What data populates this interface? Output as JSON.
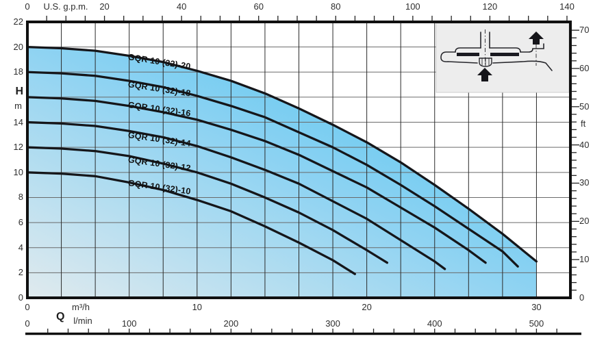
{
  "chart_data": {
    "type": "line",
    "axes": {
      "top_x": {
        "unit": "U.S. g.p.m.",
        "tick_labels": [
          0,
          20,
          40,
          60,
          80,
          100,
          120,
          140
        ],
        "minor_tick_step_gpm": 5,
        "range_gpm": [
          0,
          141
        ]
      },
      "bottom_x_m3h": {
        "label": "Q",
        "unit": "m³/h",
        "tick_labels": [
          0,
          10,
          20,
          30
        ],
        "range_m3h": [
          0,
          32
        ]
      },
      "bottom_x_lmin": {
        "unit": "l/min",
        "tick_labels": [
          0,
          100,
          200,
          300,
          400,
          500
        ],
        "minor_tick_step_lmin": 20,
        "range_lmin": [
          0,
          533
        ]
      },
      "left_y": {
        "label": "H",
        "unit": "m",
        "tick_labels": [
          22,
          20,
          18,
          14,
          12,
          10,
          8,
          6,
          4,
          2,
          0
        ],
        "gridline_step_m": 2,
        "range_m": [
          0,
          22
        ]
      },
      "right_y": {
        "unit": "ft",
        "tick_labels": [
          70,
          60,
          50,
          40,
          30,
          20,
          10,
          0
        ],
        "minor_tick_step_ft": 2,
        "range_ft": [
          0,
          72.2
        ]
      }
    },
    "series": [
      {
        "name": "GQR 10 (32)-20",
        "points": [
          [
            0,
            20
          ],
          [
            2,
            19.9
          ],
          [
            4,
            19.7
          ],
          [
            6,
            19.3
          ],
          [
            8,
            18.8
          ],
          [
            10,
            18.1
          ],
          [
            12,
            17.3
          ],
          [
            14,
            16.3
          ],
          [
            16,
            15.1
          ],
          [
            18,
            13.8
          ],
          [
            20,
            12.4
          ],
          [
            22,
            10.8
          ],
          [
            24,
            9.0
          ],
          [
            26,
            7.1
          ],
          [
            28,
            5.1
          ],
          [
            30,
            2.9
          ]
        ]
      },
      {
        "name": "GQR 10 (32)-18",
        "points": [
          [
            0,
            18
          ],
          [
            2,
            17.9
          ],
          [
            4,
            17.7
          ],
          [
            6,
            17.3
          ],
          [
            8,
            16.8
          ],
          [
            10,
            16.1
          ],
          [
            12,
            15.3
          ],
          [
            14,
            14.4
          ],
          [
            16,
            13.2
          ],
          [
            18,
            12.0
          ],
          [
            20,
            10.6
          ],
          [
            22,
            9.0
          ],
          [
            24,
            7.3
          ],
          [
            26,
            5.5
          ],
          [
            28,
            3.7
          ],
          [
            28.9,
            2.5
          ]
        ]
      },
      {
        "name": "GQR 10 (32)-16",
        "points": [
          [
            0,
            16
          ],
          [
            2,
            15.9
          ],
          [
            4,
            15.7
          ],
          [
            6,
            15.3
          ],
          [
            8,
            14.8
          ],
          [
            10,
            14.2
          ],
          [
            12,
            13.4
          ],
          [
            14,
            12.5
          ],
          [
            16,
            11.4
          ],
          [
            18,
            10.1
          ],
          [
            20,
            8.8
          ],
          [
            22,
            7.2
          ],
          [
            24,
            5.6
          ],
          [
            26,
            3.8
          ],
          [
            27,
            2.8
          ]
        ]
      },
      {
        "name": "GQR 10 (32)-14",
        "points": [
          [
            0,
            14
          ],
          [
            2,
            13.9
          ],
          [
            4,
            13.7
          ],
          [
            6,
            13.3
          ],
          [
            8,
            12.8
          ],
          [
            10,
            12.1
          ],
          [
            12,
            11.2
          ],
          [
            14,
            10.2
          ],
          [
            16,
            9.1
          ],
          [
            18,
            7.7
          ],
          [
            20,
            6.3
          ],
          [
            22,
            4.6
          ],
          [
            24,
            2.9
          ],
          [
            24.6,
            2.3
          ]
        ]
      },
      {
        "name": "GQR 10 (32)-12",
        "points": [
          [
            0,
            12
          ],
          [
            2,
            11.9
          ],
          [
            4,
            11.7
          ],
          [
            6,
            11.3
          ],
          [
            8,
            10.7
          ],
          [
            10,
            10.0
          ],
          [
            12,
            9.1
          ],
          [
            14,
            8.0
          ],
          [
            16,
            6.8
          ],
          [
            18,
            5.4
          ],
          [
            20,
            3.8
          ],
          [
            21.2,
            2.8
          ]
        ]
      },
      {
        "name": "GQR 10 (32)-10",
        "points": [
          [
            0,
            10
          ],
          [
            2,
            9.9
          ],
          [
            4,
            9.7
          ],
          [
            6,
            9.2
          ],
          [
            8,
            8.6
          ],
          [
            10,
            7.8
          ],
          [
            12,
            6.9
          ],
          [
            14,
            5.7
          ],
          [
            16,
            4.4
          ],
          [
            18,
            3.0
          ],
          [
            19.3,
            1.9
          ]
        ]
      }
    ],
    "fill_under_series": "GQR 10 (32)-20",
    "legend_position": "labels-on-curves",
    "grid": "on",
    "style": {
      "fill_gradient": [
        "#e0eaee",
        "#8fd3f2",
        "#43c0ef"
      ],
      "curve_color": "#15161a",
      "grid_color_horizontal": "#6a6a6a",
      "grid_color_vertical": "#2a2a2a",
      "border_color": "#101010",
      "text_color": "#2d2d2d",
      "inset_background": "#ededed"
    },
    "inset": {
      "name": "pump-cross-section-schematic",
      "icons": [
        "up-arrow-suction",
        "up-arrow-discharge"
      ]
    }
  }
}
